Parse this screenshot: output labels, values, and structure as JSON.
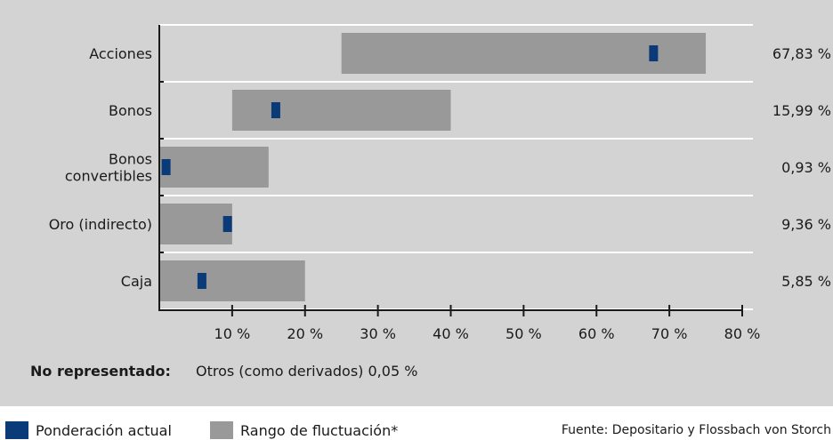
{
  "colors": {
    "current": "#0b3a78",
    "range": "#999999",
    "panel": "#d3d3d3",
    "grid": "#ffffff"
  },
  "chart_data": {
    "type": "bar",
    "categories": [
      "Acciones",
      "Bonos",
      "Bonos convertibles",
      "Oro (indirecto)",
      "Caja"
    ],
    "category_lines": [
      [
        "Acciones"
      ],
      [
        "Bonos"
      ],
      [
        "Bonos",
        "convertibles"
      ],
      [
        "Oro (indirecto)"
      ],
      [
        "Caja"
      ]
    ],
    "series": [
      {
        "name": "Rango de fluctuación*",
        "ranges": [
          [
            25,
            75
          ],
          [
            10,
            40
          ],
          [
            0,
            15
          ],
          [
            0,
            10
          ],
          [
            0,
            20
          ]
        ]
      },
      {
        "name": "Ponderación actual",
        "values": [
          67.83,
          15.99,
          0.93,
          9.36,
          5.85
        ]
      }
    ],
    "value_labels": [
      "67,83 %",
      "15,99 %",
      "0,93 %",
      "9,36 %",
      "5,85 %"
    ],
    "x_ticks": [
      10,
      20,
      30,
      40,
      50,
      60,
      70,
      80
    ],
    "x_tick_labels": [
      "10 %",
      "20 %",
      "30 %",
      "40 %",
      "50 %",
      "60 %",
      "70 %",
      "80 %"
    ],
    "xlim": [
      0,
      80
    ],
    "title": "",
    "xlabel": "",
    "ylabel": ""
  },
  "note": {
    "title": "No representado:",
    "text": "Otros (como derivados) 0,05 %"
  },
  "legend": {
    "current_label": "Ponderación actual",
    "range_label": "Rango de fluctuación*"
  },
  "source": "Fuente: Depositario y Flossbach von Storch"
}
